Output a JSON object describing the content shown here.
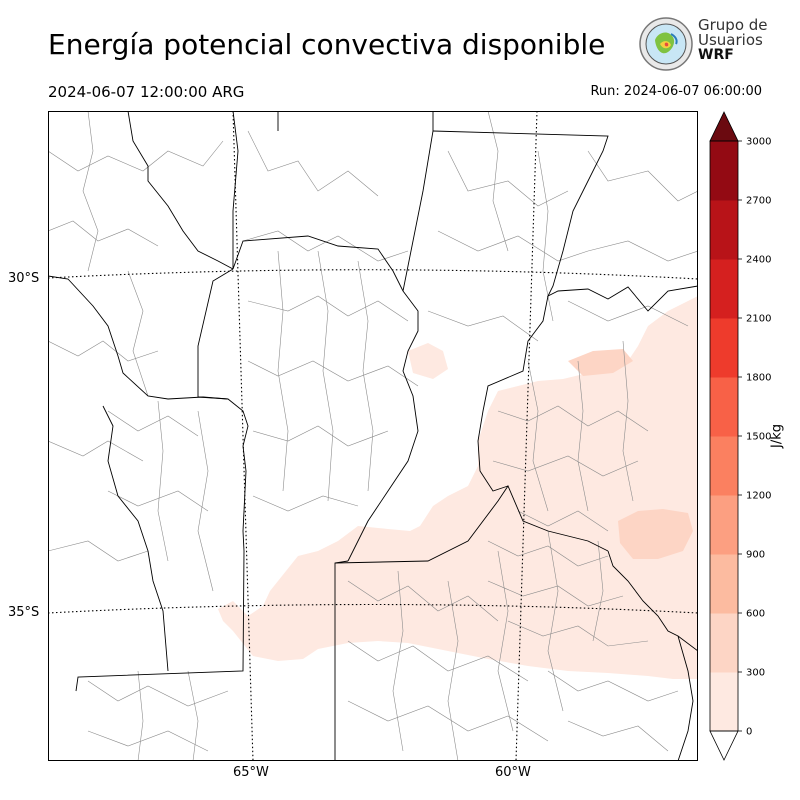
{
  "header": {
    "title": "Energía potencial convectiva disponible",
    "valid_time": "2024-06-07 12:00:00 ARG",
    "run_time": "Run: 2024-06-07 06:00:00"
  },
  "logo": {
    "line1": "Grupo de",
    "line2": "Usuarios",
    "line3": "WRF",
    "icon": "globe-logo-icon"
  },
  "map": {
    "lat_labels": [
      "30°S",
      "35°S"
    ],
    "lon_labels": [
      "65°W",
      "60°W"
    ]
  },
  "colorbar": {
    "label": "J/kg",
    "ticks": [
      "0",
      "300",
      "600",
      "900",
      "1200",
      "1500",
      "1800",
      "2100",
      "2400",
      "2700",
      "3000"
    ],
    "colors": [
      "#fee9e1",
      "#fdd5c5",
      "#fcbba0",
      "#fc9f81",
      "#fb8060",
      "#f86147",
      "#ee3b2c",
      "#d5201f",
      "#b81318",
      "#930a13",
      "#6b0a10"
    ]
  }
}
